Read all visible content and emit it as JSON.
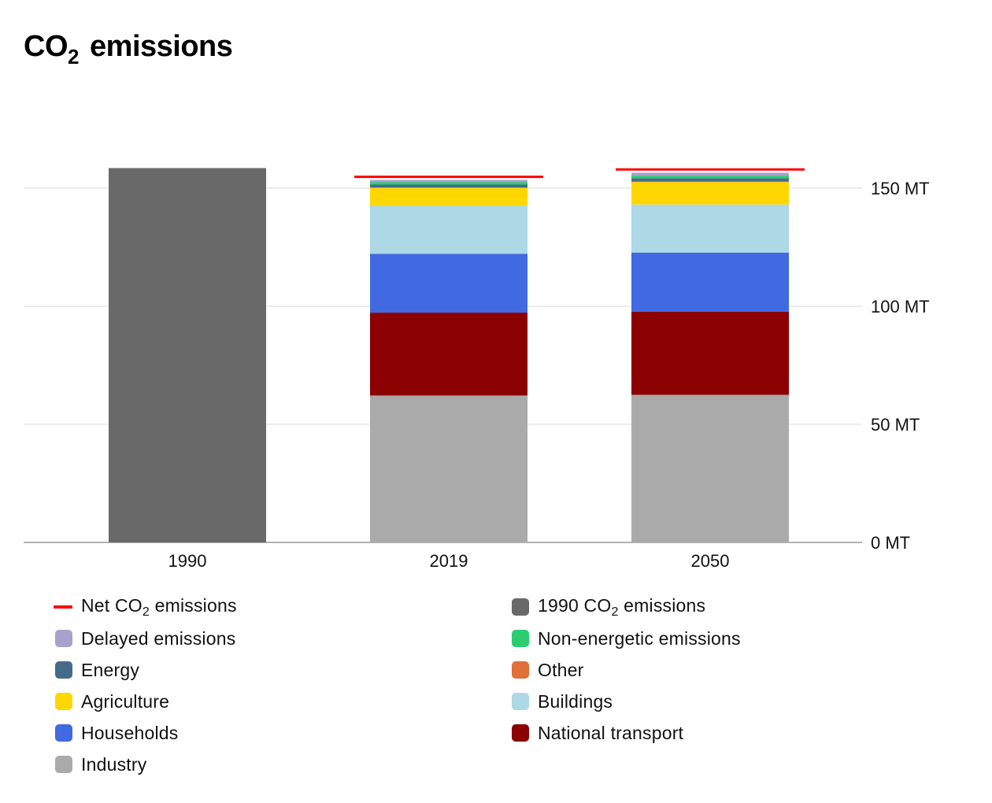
{
  "title": {
    "main": "CO",
    "sub": "2",
    "rest": " emissions"
  },
  "chart_data": {
    "type": "bar",
    "stacked": true,
    "title": "CO2 emissions",
    "categories": [
      "1990",
      "2019",
      "2050"
    ],
    "ylim": [
      0,
      150
    ],
    "yticks": [
      0,
      50,
      100,
      150
    ],
    "ytick_labels": [
      "0 MT",
      "50 MT",
      "100 MT",
      "150 MT"
    ],
    "grid": true,
    "y_axis_position": "right",
    "series": [
      {
        "name": "1990 CO2 emissions",
        "color": "#696969",
        "values": [
          158.5,
          0,
          0
        ]
      },
      {
        "name": "Industry",
        "color": "#aaaaaa",
        "values": [
          0,
          62.2,
          62.5
        ]
      },
      {
        "name": "National transport",
        "color": "#8b0000",
        "values": [
          0,
          35.1,
          35.2
        ]
      },
      {
        "name": "Households",
        "color": "#4169e1",
        "values": [
          0,
          24.9,
          25.0
        ]
      },
      {
        "name": "Buildings",
        "color": "#add8e6",
        "values": [
          0,
          20.3,
          20.4
        ]
      },
      {
        "name": "Agriculture",
        "color": "#ffd700",
        "values": [
          0,
          7.6,
          9.5
        ]
      },
      {
        "name": "Other",
        "color": "#e0703a",
        "values": [
          0,
          0.2,
          0.2
        ]
      },
      {
        "name": "Energy",
        "color": "#456b8a",
        "values": [
          0,
          1.2,
          1.4
        ]
      },
      {
        "name": "Non-energetic emissions",
        "color": "#2ecc71",
        "values": [
          0,
          1.0,
          1.1
        ]
      },
      {
        "name": "Delayed emissions",
        "color": "#aaa0cc",
        "values": [
          0,
          1.0,
          1.2
        ]
      }
    ],
    "net_line": {
      "name": "Net CO2 emissions",
      "color": "#ff0000",
      "values": [
        null,
        154.8,
        157.9
      ]
    }
  },
  "legend": [
    {
      "swatch": "line",
      "color": "#ff0000",
      "pre": "Net CO",
      "sub": "2",
      "post": " emissions"
    },
    {
      "swatch": "box",
      "color": "#696969",
      "pre": "1990 CO",
      "sub": "2",
      "post": " emissions"
    },
    {
      "swatch": "box",
      "color": "#aaa0cc",
      "pre": "Delayed emissions",
      "sub": "",
      "post": ""
    },
    {
      "swatch": "box",
      "color": "#2ecc71",
      "pre": "Non-energetic emissions",
      "sub": "",
      "post": ""
    },
    {
      "swatch": "box",
      "color": "#456b8a",
      "pre": "Energy",
      "sub": "",
      "post": ""
    },
    {
      "swatch": "box",
      "color": "#e0703a",
      "pre": "Other",
      "sub": "",
      "post": ""
    },
    {
      "swatch": "box",
      "color": "#ffd700",
      "pre": "Agriculture",
      "sub": "",
      "post": ""
    },
    {
      "swatch": "box",
      "color": "#add8e6",
      "pre": "Buildings",
      "sub": "",
      "post": ""
    },
    {
      "swatch": "box",
      "color": "#4169e1",
      "pre": "Households",
      "sub": "",
      "post": ""
    },
    {
      "swatch": "box",
      "color": "#8b0000",
      "pre": "National transport",
      "sub": "",
      "post": ""
    },
    {
      "swatch": "box",
      "color": "#aaaaaa",
      "pre": "Industry",
      "sub": "",
      "post": ""
    }
  ]
}
